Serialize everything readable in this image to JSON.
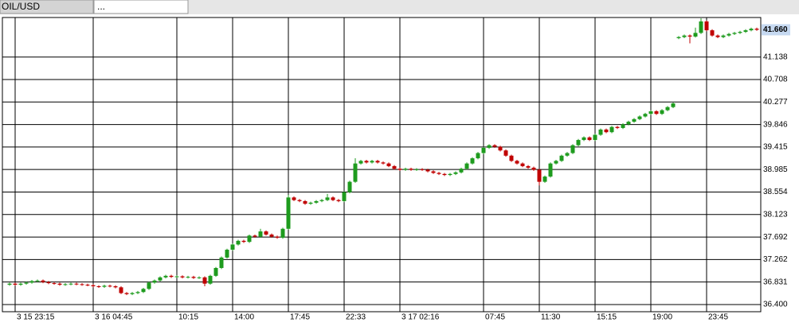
{
  "tabs": [
    "OIL/USD",
    "..."
  ],
  "chart_data": {
    "type": "candlestick",
    "categories": [
      null,
      "3 15 23:15",
      null,
      null,
      null,
      null,
      null,
      null,
      null,
      null,
      null,
      null,
      null,
      null,
      null,
      "3 16 04:45",
      null,
      null,
      null,
      null,
      null,
      null,
      null,
      null,
      null,
      null,
      null,
      null,
      null,
      null,
      "10:15",
      null,
      null,
      null,
      null,
      null,
      null,
      null,
      null,
      null,
      "14:00",
      null,
      null,
      null,
      null,
      null,
      null,
      null,
      null,
      null,
      "17:45",
      null,
      null,
      null,
      null,
      null,
      null,
      null,
      null,
      null,
      "22:33",
      null,
      null,
      null,
      null,
      null,
      null,
      null,
      null,
      null,
      "3 17 02:16",
      null,
      null,
      null,
      null,
      null,
      null,
      null,
      null,
      null,
      null,
      null,
      null,
      null,
      null,
      "07:45",
      null,
      null,
      null,
      null,
      null,
      null,
      null,
      null,
      null,
      "11:30",
      null,
      null,
      null,
      null,
      null,
      null,
      null,
      null,
      null,
      "15:15",
      null,
      null,
      null,
      null,
      null,
      null,
      null,
      null,
      null,
      "19:00",
      null,
      null,
      null,
      null,
      null,
      null,
      null,
      null,
      null,
      "23:45",
      null,
      null,
      null,
      null,
      null,
      null,
      null,
      null,
      null
    ],
    "open": [
      36.78,
      36.8,
      36.78,
      36.8,
      36.82,
      36.85,
      36.86,
      36.83,
      36.81,
      36.8,
      36.78,
      36.79,
      36.8,
      36.79,
      36.78,
      36.77,
      36.75,
      36.74,
      36.76,
      36.75,
      36.73,
      36.62,
      36.6,
      36.62,
      36.64,
      36.7,
      36.82,
      36.86,
      36.92,
      36.95,
      36.93,
      36.94,
      36.92,
      36.93,
      36.91,
      36.92,
      36.8,
      36.95,
      37.1,
      37.3,
      37.45,
      37.55,
      37.62,
      37.6,
      37.72,
      37.7,
      37.8,
      37.74,
      37.7,
      37.68,
      37.85,
      38.45,
      38.4,
      38.38,
      38.33,
      38.35,
      38.38,
      38.4,
      38.45,
      38.4,
      38.38,
      38.55,
      38.75,
      39.1,
      39.15,
      39.12,
      39.15,
      39.12,
      39.1,
      39.05,
      39.0,
      38.98,
      39.0,
      38.98,
      38.99,
      38.98,
      38.95,
      38.92,
      38.9,
      38.88,
      38.9,
      38.93,
      39.0,
      39.1,
      39.2,
      39.3,
      39.4,
      39.45,
      39.42,
      39.35,
      39.25,
      39.15,
      39.1,
      39.05,
      39.02,
      38.98,
      38.75,
      38.85,
      39.1,
      39.15,
      39.25,
      39.3,
      39.45,
      39.55,
      39.6,
      39.55,
      39.65,
      39.75,
      39.7,
      39.8,
      39.78,
      39.85,
      39.9,
      39.95,
      40.0,
      40.05,
      40.1,
      40.05,
      40.12,
      40.18,
      41.5,
      41.52,
      41.55,
      41.53,
      41.6,
      41.82,
      41.65,
      41.55,
      41.52,
      41.55,
      41.58,
      41.6,
      41.62,
      41.65,
      41.68
    ],
    "high": [
      36.82,
      36.82,
      36.82,
      36.84,
      36.87,
      36.88,
      36.88,
      36.85,
      36.83,
      36.82,
      36.81,
      36.82,
      36.82,
      36.81,
      36.8,
      36.79,
      36.77,
      36.78,
      36.78,
      36.77,
      36.75,
      36.64,
      36.64,
      36.66,
      36.72,
      36.84,
      36.88,
      36.94,
      36.97,
      36.97,
      36.96,
      36.96,
      36.95,
      36.95,
      36.94,
      36.94,
      36.97,
      37.12,
      37.32,
      37.47,
      37.57,
      37.64,
      37.64,
      37.74,
      37.74,
      37.85,
      37.82,
      37.76,
      37.72,
      37.87,
      38.5,
      38.47,
      38.42,
      38.4,
      38.37,
      38.4,
      38.42,
      38.52,
      38.47,
      38.42,
      38.57,
      38.77,
      39.2,
      39.17,
      39.17,
      39.17,
      39.17,
      39.14,
      39.12,
      39.07,
      39.02,
      39.02,
      39.02,
      39.01,
      39.01,
      39.0,
      38.97,
      38.94,
      38.92,
      38.92,
      38.95,
      39.02,
      39.12,
      39.22,
      39.32,
      39.42,
      39.47,
      39.47,
      39.44,
      39.37,
      39.27,
      39.17,
      39.12,
      39.07,
      39.04,
      39.0,
      38.87,
      39.12,
      39.17,
      39.27,
      39.32,
      39.47,
      39.57,
      39.62,
      39.62,
      39.67,
      39.77,
      39.77,
      39.82,
      39.82,
      39.87,
      39.92,
      39.97,
      40.02,
      40.07,
      40.12,
      40.12,
      40.14,
      40.2,
      40.27,
      41.54,
      41.57,
      41.57,
      41.7,
      41.88,
      41.84,
      41.67,
      41.57,
      41.57,
      41.6,
      41.62,
      41.64,
      41.67,
      41.7,
      41.7
    ],
    "low": [
      36.76,
      36.76,
      36.76,
      36.78,
      36.8,
      36.83,
      36.81,
      36.79,
      36.78,
      36.76,
      36.76,
      36.77,
      36.77,
      36.76,
      36.75,
      36.73,
      36.72,
      36.72,
      36.73,
      36.71,
      36.6,
      36.58,
      36.58,
      36.6,
      36.62,
      36.68,
      36.8,
      36.84,
      36.9,
      36.91,
      36.91,
      36.9,
      36.9,
      36.89,
      36.89,
      36.75,
      36.78,
      36.93,
      37.08,
      37.28,
      37.43,
      37.53,
      37.58,
      37.58,
      37.68,
      37.68,
      37.72,
      37.68,
      37.66,
      37.66,
      37.83,
      38.38,
      38.36,
      38.31,
      38.31,
      38.33,
      38.36,
      38.38,
      38.38,
      38.36,
      38.36,
      38.53,
      38.73,
      39.08,
      39.1,
      39.1,
      39.1,
      39.08,
      39.03,
      38.98,
      38.96,
      38.96,
      38.96,
      38.96,
      38.96,
      38.93,
      38.9,
      38.88,
      38.86,
      38.86,
      38.88,
      38.91,
      38.98,
      39.08,
      39.18,
      39.28,
      39.38,
      39.4,
      39.33,
      39.23,
      39.13,
      39.08,
      39.03,
      39.0,
      38.96,
      38.68,
      38.73,
      38.83,
      39.08,
      39.13,
      39.23,
      39.28,
      39.43,
      39.53,
      39.53,
      39.53,
      39.63,
      39.68,
      39.68,
      39.76,
      39.76,
      39.83,
      39.88,
      39.93,
      39.98,
      40.03,
      40.03,
      40.03,
      40.1,
      40.16,
      41.48,
      41.5,
      41.4,
      41.51,
      41.58,
      41.63,
      41.53,
      41.5,
      41.5,
      41.53,
      41.56,
      41.58,
      41.6,
      41.63,
      41.64
    ],
    "close": [
      36.8,
      36.78,
      36.8,
      36.82,
      36.85,
      36.86,
      36.83,
      36.81,
      36.8,
      36.78,
      36.79,
      36.8,
      36.79,
      36.78,
      36.77,
      36.75,
      36.74,
      36.76,
      36.75,
      36.73,
      36.62,
      36.6,
      36.62,
      36.64,
      36.7,
      36.82,
      36.86,
      36.92,
      36.95,
      36.93,
      36.94,
      36.92,
      36.93,
      36.91,
      36.92,
      36.8,
      36.95,
      37.1,
      37.3,
      37.45,
      37.55,
      37.62,
      37.6,
      37.72,
      37.7,
      37.8,
      37.74,
      37.7,
      37.68,
      37.85,
      38.45,
      38.4,
      38.38,
      38.33,
      38.35,
      38.38,
      38.4,
      38.45,
      38.4,
      38.38,
      38.55,
      38.75,
      39.1,
      39.15,
      39.12,
      39.15,
      39.12,
      39.1,
      39.05,
      39.0,
      38.98,
      39.0,
      38.98,
      38.99,
      38.98,
      38.95,
      38.92,
      38.9,
      38.88,
      38.9,
      38.93,
      39.0,
      39.1,
      39.2,
      39.3,
      39.4,
      39.45,
      39.42,
      39.35,
      39.25,
      39.15,
      39.1,
      39.05,
      39.02,
      38.98,
      38.75,
      38.85,
      39.1,
      39.15,
      39.25,
      39.3,
      39.45,
      39.55,
      39.6,
      39.55,
      39.65,
      39.75,
      39.7,
      39.8,
      39.78,
      39.85,
      39.9,
      39.95,
      40.0,
      40.05,
      40.1,
      40.05,
      40.12,
      40.18,
      40.25,
      41.52,
      41.55,
      41.53,
      41.6,
      41.82,
      41.65,
      41.55,
      41.52,
      41.55,
      41.58,
      41.6,
      41.62,
      41.65,
      41.68,
      41.66
    ],
    "up_color": "#1e9b1e",
    "down_color": "#c00000",
    "ylim": [
      36.263,
      41.895
    ],
    "yticks": [
      {
        "value": 36.4,
        "label": "36.400"
      },
      36.831,
      37.262,
      37.692,
      38.123,
      38.554,
      38.985,
      39.415,
      39.846,
      40.277,
      40.708,
      41.138
    ],
    "last_price": {
      "value": 41.66,
      "label": "41.660"
    },
    "grid": true
  }
}
